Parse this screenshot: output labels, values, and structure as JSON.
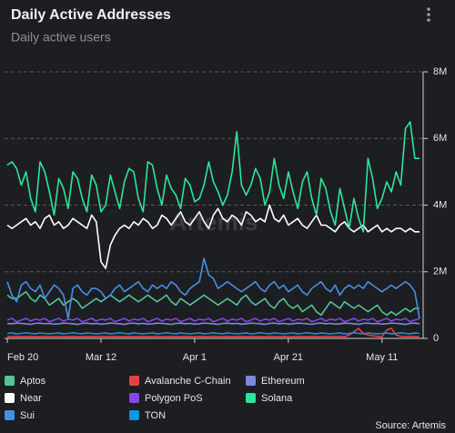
{
  "chart_data": {
    "type": "line",
    "title": "Daily Active Addresses",
    "subtitle": "Daily active users",
    "source": "Source: Artemis",
    "watermark": "Artemis",
    "categories": [
      "Feb 20",
      null,
      null,
      null,
      null,
      null,
      null,
      null,
      null,
      null,
      null,
      null,
      null,
      null,
      null,
      null,
      null,
      null,
      null,
      null,
      "Mar 12",
      null,
      null,
      null,
      null,
      null,
      null,
      null,
      null,
      null,
      null,
      null,
      null,
      null,
      null,
      null,
      null,
      null,
      null,
      null,
      "Apr 1",
      null,
      null,
      null,
      null,
      null,
      null,
      null,
      null,
      null,
      null,
      null,
      null,
      null,
      null,
      null,
      null,
      null,
      null,
      null,
      "Apr 21",
      null,
      null,
      null,
      null,
      null,
      null,
      null,
      null,
      null,
      null,
      null,
      null,
      null,
      null,
      null,
      null,
      null,
      null,
      null,
      "May 11",
      null,
      null,
      null,
      null,
      null,
      null,
      null,
      null
    ],
    "ylim": [
      0,
      8
    ],
    "yticks": [
      {
        "value": 0,
        "label": "0"
      },
      {
        "value": 2,
        "label": "2M"
      },
      {
        "value": 4,
        "label": "4M"
      },
      {
        "value": 6,
        "label": "6M"
      },
      {
        "value": 8,
        "label": "8M"
      }
    ],
    "grid": true,
    "series": [
      {
        "name": "Aptos",
        "color": "#52c495",
        "values": [
          1.3,
          1.2,
          1.2,
          1.3,
          1.4,
          1.2,
          1.1,
          1.3,
          1.2,
          1.0,
          1.1,
          1.2,
          1.0,
          1.1,
          1.2,
          1.1,
          0.9,
          1.0,
          1.1,
          1.2,
          1.1,
          1.2,
          1.3,
          1.2,
          1.1,
          1.2,
          1.3,
          1.2,
          1.1,
          1.2,
          1.3,
          1.2,
          1.1,
          1.2,
          1.3,
          1.1,
          1.0,
          1.2,
          1.1,
          1.0,
          1.1,
          1.2,
          1.3,
          1.2,
          1.1,
          1.0,
          1.1,
          1.2,
          1.1,
          1.0,
          1.2,
          1.3,
          1.1,
          1.0,
          1.1,
          1.2,
          1.0,
          0.9,
          1.1,
          1.2,
          1.0,
          0.9,
          1.0,
          0.8,
          0.9,
          1.0,
          0.8,
          0.7,
          0.9,
          1.1,
          1.0,
          0.9,
          1.1,
          1.0,
          0.9,
          1.0,
          0.9,
          0.8,
          0.9,
          1.0,
          0.8,
          0.7,
          0.8,
          0.7,
          0.8,
          0.9,
          0.8,
          0.9,
          0.9
        ]
      },
      {
        "name": "Avalanche C-Chain",
        "color": "#e84142",
        "values": [
          0.05,
          0.05,
          0.06,
          0.05,
          0.05,
          0.06,
          0.05,
          0.05,
          0.06,
          0.05,
          0.05,
          0.06,
          0.05,
          0.05,
          0.06,
          0.05,
          0.05,
          0.06,
          0.05,
          0.05,
          0.06,
          0.05,
          0.05,
          0.06,
          0.05,
          0.05,
          0.06,
          0.05,
          0.05,
          0.06,
          0.05,
          0.05,
          0.06,
          0.05,
          0.05,
          0.06,
          0.05,
          0.05,
          0.06,
          0.05,
          0.05,
          0.06,
          0.05,
          0.05,
          0.06,
          0.05,
          0.05,
          0.06,
          0.05,
          0.05,
          0.06,
          0.05,
          0.05,
          0.06,
          0.05,
          0.05,
          0.06,
          0.05,
          0.05,
          0.06,
          0.05,
          0.05,
          0.06,
          0.05,
          0.05,
          0.06,
          0.05,
          0.05,
          0.06,
          0.05,
          0.05,
          0.06,
          0.05,
          0.1,
          0.2,
          0.3,
          0.15,
          0.1,
          0.08,
          0.06,
          0.05,
          0.25,
          0.3,
          0.1,
          0.06,
          0.05,
          0.06,
          0.05,
          0.05
        ]
      },
      {
        "name": "Ethereum",
        "color": "#7b8ad8",
        "values": [
          0.45,
          0.44,
          0.46,
          0.45,
          0.44,
          0.42,
          0.45,
          0.46,
          0.44,
          0.45,
          0.43,
          0.44,
          0.46,
          0.45,
          0.44,
          0.42,
          0.45,
          0.46,
          0.44,
          0.45,
          0.43,
          0.44,
          0.46,
          0.45,
          0.44,
          0.42,
          0.45,
          0.46,
          0.44,
          0.45,
          0.43,
          0.44,
          0.46,
          0.45,
          0.44,
          0.42,
          0.45,
          0.46,
          0.44,
          0.45,
          0.43,
          0.44,
          0.46,
          0.45,
          0.44,
          0.42,
          0.45,
          0.46,
          0.44,
          0.45,
          0.43,
          0.44,
          0.46,
          0.45,
          0.44,
          0.42,
          0.45,
          0.46,
          0.44,
          0.45,
          0.43,
          0.44,
          0.46,
          0.45,
          0.44,
          0.42,
          0.45,
          0.46,
          0.44,
          0.45,
          0.43,
          0.44,
          0.46,
          0.45,
          0.44,
          0.42,
          0.45,
          0.46,
          0.44,
          0.45,
          0.43,
          0.44,
          0.46,
          0.45,
          0.44,
          0.42,
          0.45,
          0.46,
          0.44
        ]
      },
      {
        "name": "Near",
        "color": "#ffffff",
        "values": [
          3.4,
          3.3,
          3.4,
          3.5,
          3.6,
          3.4,
          3.5,
          3.3,
          3.6,
          3.7,
          3.4,
          3.5,
          3.3,
          3.4,
          3.6,
          3.5,
          3.4,
          3.3,
          3.7,
          3.5,
          2.3,
          2.1,
          2.8,
          3.1,
          3.3,
          3.4,
          3.3,
          3.5,
          3.4,
          3.6,
          3.5,
          3.3,
          3.4,
          3.7,
          3.6,
          3.4,
          3.6,
          3.8,
          3.5,
          3.4,
          3.6,
          3.8,
          3.5,
          3.3,
          3.7,
          3.9,
          3.6,
          3.5,
          3.7,
          3.6,
          3.4,
          3.8,
          3.7,
          3.5,
          3.6,
          3.5,
          4.0,
          3.6,
          3.5,
          3.7,
          3.4,
          3.5,
          3.6,
          3.4,
          3.3,
          3.5,
          3.7,
          3.4,
          3.4,
          3.3,
          3.2,
          3.4,
          3.5,
          3.3,
          3.2,
          3.3,
          3.4,
          3.2,
          3.3,
          3.4,
          3.2,
          3.3,
          3.2,
          3.3,
          3.3,
          3.2,
          3.3,
          3.2,
          3.2
        ]
      },
      {
        "name": "Polygon PoS",
        "color": "#8247e5",
        "values": [
          0.55,
          0.6,
          0.5,
          0.55,
          0.6,
          0.52,
          0.58,
          0.55,
          0.6,
          0.5,
          0.55,
          0.6,
          0.52,
          0.58,
          0.55,
          0.6,
          0.5,
          0.55,
          0.6,
          0.52,
          0.58,
          0.55,
          0.6,
          0.5,
          0.55,
          0.6,
          0.52,
          0.58,
          0.55,
          0.6,
          0.5,
          0.55,
          0.6,
          0.52,
          0.58,
          0.55,
          0.6,
          0.5,
          0.55,
          0.6,
          0.52,
          0.58,
          0.55,
          0.6,
          0.5,
          0.55,
          0.6,
          0.52,
          0.58,
          0.55,
          0.6,
          0.5,
          0.55,
          0.6,
          0.52,
          0.58,
          0.55,
          0.6,
          0.5,
          0.55,
          0.6,
          0.52,
          0.58,
          0.55,
          0.6,
          0.5,
          0.55,
          0.6,
          0.52,
          0.58,
          0.55,
          0.6,
          0.5,
          0.55,
          0.6,
          0.52,
          0.58,
          0.55,
          0.6,
          0.5,
          0.55,
          0.6,
          0.52,
          0.58,
          0.55,
          0.6,
          0.5,
          0.55,
          0.6
        ]
      },
      {
        "name": "Solana",
        "color": "#2ee59b",
        "values": [
          5.2,
          5.3,
          5.1,
          4.6,
          5.0,
          4.2,
          3.8,
          5.3,
          5.0,
          4.4,
          3.7,
          4.8,
          4.5,
          3.9,
          5.0,
          4.8,
          4.2,
          3.8,
          4.9,
          4.6,
          3.8,
          4.0,
          4.9,
          4.4,
          3.9,
          4.7,
          5.1,
          5.0,
          4.2,
          3.8,
          5.3,
          5.2,
          4.5,
          4.0,
          4.9,
          4.5,
          4.3,
          3.9,
          4.8,
          4.6,
          4.1,
          4.2,
          4.6,
          5.3,
          4.7,
          4.4,
          4.0,
          4.3,
          5.0,
          6.2,
          4.6,
          4.3,
          4.6,
          5.1,
          4.8,
          4.0,
          4.4,
          5.4,
          4.6,
          4.2,
          5.0,
          4.4,
          3.9,
          4.7,
          5.0,
          4.2,
          3.7,
          4.8,
          4.5,
          3.8,
          3.4,
          4.5,
          3.9,
          3.3,
          4.2,
          3.6,
          3.2,
          5.4,
          4.8,
          3.9,
          4.2,
          4.7,
          4.4,
          5.0,
          4.6,
          6.3,
          6.5,
          5.4,
          5.4
        ]
      },
      {
        "name": "Sui",
        "color": "#4a8fe2",
        "values": [
          1.7,
          1.3,
          1.1,
          1.6,
          1.7,
          1.5,
          1.4,
          1.6,
          1.2,
          1.4,
          1.6,
          1.5,
          1.3,
          0.6,
          1.5,
          1.6,
          1.4,
          1.3,
          1.5,
          1.5,
          1.4,
          1.2,
          1.3,
          1.5,
          1.6,
          1.4,
          1.5,
          1.6,
          1.7,
          1.5,
          1.4,
          1.6,
          1.5,
          1.6,
          1.5,
          1.7,
          1.6,
          1.4,
          1.3,
          1.5,
          1.6,
          1.7,
          2.4,
          1.9,
          1.8,
          1.5,
          1.6,
          1.7,
          1.6,
          1.5,
          1.4,
          1.5,
          1.6,
          1.7,
          1.5,
          1.4,
          1.6,
          1.7,
          1.5,
          1.6,
          1.4,
          1.5,
          1.6,
          1.4,
          1.3,
          1.5,
          1.6,
          1.7,
          1.5,
          1.4,
          1.6,
          1.3,
          1.5,
          1.6,
          1.5,
          1.6,
          1.5,
          1.7,
          1.6,
          1.5,
          1.4,
          1.5,
          1.6,
          1.5,
          1.6,
          1.7,
          1.6,
          1.4,
          0.6
        ]
      },
      {
        "name": "TON",
        "color": "#0a96e8",
        "values": [
          0.15,
          0.16,
          0.14,
          0.15,
          0.17,
          0.15,
          0.14,
          0.16,
          0.15,
          0.14,
          0.15,
          0.16,
          0.14,
          0.15,
          0.17,
          0.15,
          0.14,
          0.16,
          0.15,
          0.14,
          0.15,
          0.16,
          0.14,
          0.15,
          0.17,
          0.15,
          0.14,
          0.16,
          0.15,
          0.14,
          0.15,
          0.16,
          0.14,
          0.15,
          0.17,
          0.15,
          0.14,
          0.16,
          0.15,
          0.14,
          0.15,
          0.16,
          0.14,
          0.15,
          0.17,
          0.15,
          0.14,
          0.16,
          0.15,
          0.14,
          0.15,
          0.16,
          0.14,
          0.15,
          0.17,
          0.15,
          0.14,
          0.16,
          0.15,
          0.14,
          0.15,
          0.16,
          0.14,
          0.15,
          0.17,
          0.15,
          0.14,
          0.16,
          0.15,
          0.14,
          0.15,
          0.16,
          0.14,
          0.15,
          0.17,
          0.15,
          0.14,
          0.16,
          0.15,
          0.14,
          0.15,
          0.16,
          0.14,
          0.15,
          0.17,
          0.15,
          0.14,
          0.16,
          0.15
        ]
      }
    ]
  }
}
